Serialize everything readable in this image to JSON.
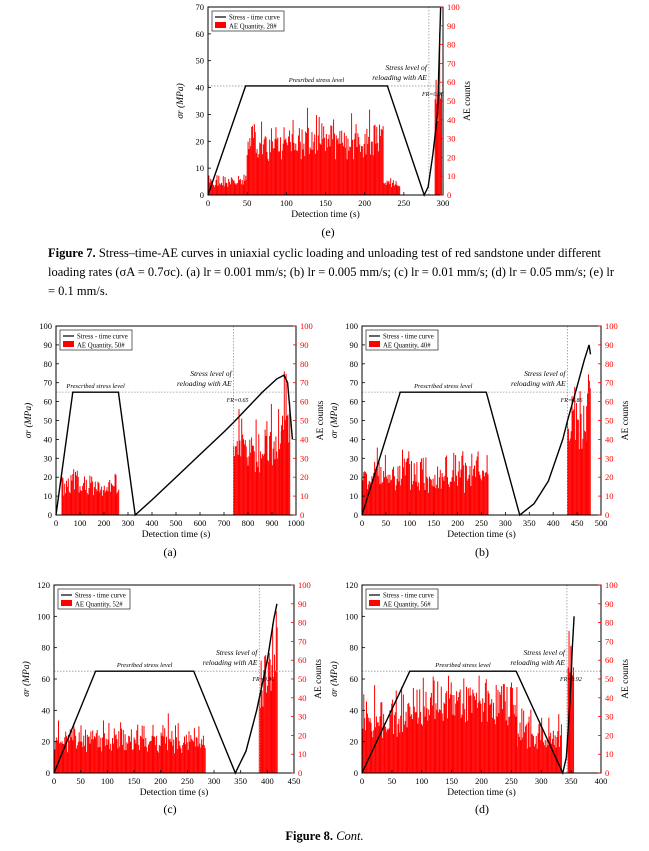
{
  "captions": {
    "fig7_label": "Figure 7.",
    "fig7_text": "Stress–time-AE curves in uniaxial cyclic loading and unloading test of red sandstone under different loading rates (σA = 0.7σc). (a) lr = 0.001 mm/s; (b) lr = 0.005 mm/s; (c) lr = 0.01 mm/s; (d) lr = 0.05 mm/s; (e) lr = 0.1 mm/s.",
    "fig8_label": "Figure 8.",
    "fig8_text": "Cont."
  },
  "colors": {
    "ae": "#ff0000",
    "stress": "#000000",
    "ref": "#999999"
  },
  "chart_data": [
    {
      "id": "e",
      "panel_label": "(e)",
      "type": "line+bar",
      "xlabel": "Detection time (s)",
      "ylabel": "σr (MPa)",
      "y2label": "AE counts",
      "xlim": [
        0,
        300
      ],
      "ylim": [
        0,
        70
      ],
      "y2lim": [
        0,
        100
      ],
      "xticks": [
        0,
        50,
        100,
        150,
        200,
        250,
        300
      ],
      "yticks": [
        0,
        10,
        20,
        30,
        40,
        50,
        60,
        70
      ],
      "y2ticks": [
        0,
        10,
        20,
        30,
        40,
        50,
        60,
        70,
        80,
        90,
        100
      ],
      "legend": [
        "Stress - time curve",
        "AE Quantity, 28#"
      ],
      "annotations": {
        "prescribed": "Presribed stress level",
        "reload1": "Stress level of",
        "reload2": "reloading with AE",
        "fr": "FR=0.95"
      },
      "prescribed_level": 40.6,
      "reload_time": 282,
      "stress_curve": [
        [
          0,
          0
        ],
        [
          48,
          40.6
        ],
        [
          229,
          40.6
        ],
        [
          276,
          0
        ],
        [
          281,
          3
        ],
        [
          287,
          15
        ],
        [
          293,
          30
        ],
        [
          297,
          70
        ]
      ],
      "ae_bursts": [
        {
          "start": 0,
          "end": 50,
          "base": 4,
          "peak": 12,
          "seed": 1
        },
        {
          "start": 50,
          "end": 224,
          "base": 24,
          "peak": 47,
          "seed": 2
        },
        {
          "start": 224,
          "end": 245,
          "base": 3,
          "peak": 12,
          "seed": 3
        },
        {
          "start": 290,
          "end": 299,
          "base": 35,
          "peak": 100,
          "seed": 4
        }
      ]
    },
    {
      "id": "a",
      "panel_label": "(a)",
      "type": "line+bar",
      "xlabel": "Detection time (s)",
      "ylabel": "σr (MPa)",
      "y2label": "AE counts",
      "xlim": [
        0,
        1000
      ],
      "ylim": [
        0,
        100
      ],
      "y2lim": [
        0,
        100
      ],
      "xticks": [
        0,
        100,
        200,
        300,
        400,
        500,
        600,
        700,
        800,
        900,
        1000
      ],
      "yticks": [
        0,
        10,
        20,
        30,
        40,
        50,
        60,
        70,
        80,
        90,
        100
      ],
      "y2ticks": [
        0,
        10,
        20,
        30,
        40,
        50,
        60,
        70,
        80,
        90,
        100
      ],
      "legend": [
        "Stress - time curve",
        "AE Quantity, 50#"
      ],
      "annotations": {
        "prescribed": "Prescribed stress level",
        "reload1": "Stress level of",
        "reload2": "reloading with AE",
        "fr": "FR=0.65"
      },
      "prescribed_level": 65,
      "reload_time": 740,
      "stress_curve": [
        [
          0,
          0
        ],
        [
          70,
          65
        ],
        [
          260,
          65
        ],
        [
          330,
          0
        ],
        [
          400,
          8
        ],
        [
          500,
          20
        ],
        [
          600,
          32
        ],
        [
          700,
          44
        ],
        [
          740,
          49
        ],
        [
          800,
          57
        ],
        [
          860,
          65
        ],
        [
          920,
          72
        ],
        [
          950,
          74
        ],
        [
          965,
          70
        ],
        [
          975,
          55
        ],
        [
          985,
          40
        ]
      ],
      "ae_bursts": [
        {
          "start": 25,
          "end": 265,
          "base": 10,
          "peak": 28,
          "seed": 5
        },
        {
          "start": 740,
          "end": 940,
          "base": 28,
          "peak": 63,
          "seed": 6
        },
        {
          "start": 940,
          "end": 975,
          "base": 50,
          "peak": 100,
          "seed": 7
        }
      ]
    },
    {
      "id": "b",
      "panel_label": "(b)",
      "type": "line+bar",
      "xlabel": "Detection time (s)",
      "ylabel": "σr (MPa)",
      "y2label": "AE counts",
      "xlim": [
        0,
        500
      ],
      "ylim": [
        0,
        100
      ],
      "y2lim": [
        0,
        100
      ],
      "xticks": [
        0,
        50,
        100,
        150,
        200,
        250,
        300,
        350,
        400,
        450,
        500
      ],
      "yticks": [
        0,
        10,
        20,
        30,
        40,
        50,
        60,
        70,
        80,
        90,
        100
      ],
      "y2ticks": [
        0,
        10,
        20,
        30,
        40,
        50,
        60,
        70,
        80,
        90,
        100
      ],
      "legend": [
        "Stress - time curve",
        "AE Quantity, 40#"
      ],
      "annotations": {
        "prescribed": "Prescribed stress level",
        "reload1": "Stress level of",
        "reload2": "reloading with AE",
        "fr": "FR=0.86"
      },
      "prescribed_level": 65,
      "reload_time": 430,
      "stress_curve": [
        [
          0,
          0
        ],
        [
          80,
          65
        ],
        [
          260,
          65
        ],
        [
          330,
          0
        ],
        [
          360,
          6
        ],
        [
          390,
          18
        ],
        [
          420,
          40
        ],
        [
          430,
          50
        ],
        [
          450,
          68
        ],
        [
          465,
          82
        ],
        [
          475,
          90
        ],
        [
          478,
          85
        ]
      ],
      "ae_bursts": [
        {
          "start": 0,
          "end": 265,
          "base": 10,
          "peak": 40,
          "seed": 8
        },
        {
          "start": 430,
          "end": 470,
          "base": 45,
          "peak": 75,
          "seed": 9
        },
        {
          "start": 470,
          "end": 478,
          "base": 60,
          "peak": 100,
          "seed": 10
        }
      ]
    },
    {
      "id": "c",
      "panel_label": "(c)",
      "type": "line+bar",
      "xlabel": "Detection time (s)",
      "ylabel": "σr (MPa)",
      "y2label": "AE counts",
      "xlim": [
        0,
        450
      ],
      "ylim": [
        0,
        120
      ],
      "y2lim": [
        0,
        100
      ],
      "xticks": [
        0,
        50,
        100,
        150,
        200,
        250,
        300,
        350,
        400,
        450
      ],
      "yticks": [
        0,
        20,
        40,
        60,
        80,
        100,
        120
      ],
      "y2ticks": [
        0,
        10,
        20,
        30,
        40,
        50,
        60,
        70,
        80,
        90,
        100
      ],
      "legend": [
        "Stress - time curve",
        "AE Quantity, 52#"
      ],
      "annotations": {
        "prescribed": "Presribed stress level",
        "reload1": "Stress level of",
        "reload2": "reloading with AE",
        "fr": "FR=0.90"
      },
      "prescribed_level": 65,
      "reload_time": 385,
      "stress_curve": [
        [
          0,
          0
        ],
        [
          78,
          65
        ],
        [
          262,
          65
        ],
        [
          340,
          0
        ],
        [
          360,
          14
        ],
        [
          380,
          40
        ],
        [
          385,
          48
        ],
        [
          400,
          72
        ],
        [
          412,
          98
        ],
        [
          418,
          108
        ]
      ],
      "ae_bursts": [
        {
          "start": 0,
          "end": 285,
          "base": 12,
          "peak": 32,
          "seed": 11
        },
        {
          "start": 385,
          "end": 410,
          "base": 40,
          "peak": 75,
          "seed": 12
        },
        {
          "start": 410,
          "end": 420,
          "base": 60,
          "peak": 100,
          "seed": 13
        }
      ]
    },
    {
      "id": "d",
      "panel_label": "(d)",
      "type": "line+bar",
      "xlabel": "Detection time (s)",
      "ylabel": "σr (MPa)",
      "y2label": "AE counts",
      "xlim": [
        0,
        400
      ],
      "ylim": [
        0,
        120
      ],
      "y2lim": [
        0,
        100
      ],
      "xticks": [
        0,
        50,
        100,
        150,
        200,
        250,
        300,
        350,
        400
      ],
      "yticks": [
        0,
        20,
        40,
        60,
        80,
        100,
        120
      ],
      "y2ticks": [
        0,
        10,
        20,
        30,
        40,
        50,
        60,
        70,
        80,
        90,
        100
      ],
      "legend": [
        "Stress - time curve",
        "AE Quantity, 56#"
      ],
      "annotations": {
        "prescribed": "Presribed stress level",
        "reload1": "Stress level of",
        "reload2": "reloading with AE",
        "fr": "FR=0.92"
      },
      "prescribed_level": 65,
      "reload_time": 343,
      "stress_curve": [
        [
          0,
          0
        ],
        [
          80,
          65
        ],
        [
          258,
          65
        ],
        [
          336,
          0
        ],
        [
          342,
          10
        ],
        [
          348,
          45
        ],
        [
          352,
          80
        ],
        [
          355,
          100
        ]
      ],
      "ae_bursts": [
        {
          "start": 0,
          "end": 80,
          "base": 20,
          "peak": 48,
          "seed": 14
        },
        {
          "start": 80,
          "end": 260,
          "base": 40,
          "peak": 55,
          "seed": 15
        },
        {
          "start": 260,
          "end": 335,
          "base": 10,
          "peak": 40,
          "seed": 16
        },
        {
          "start": 345,
          "end": 355,
          "base": 60,
          "peak": 100,
          "seed": 17
        }
      ]
    }
  ]
}
